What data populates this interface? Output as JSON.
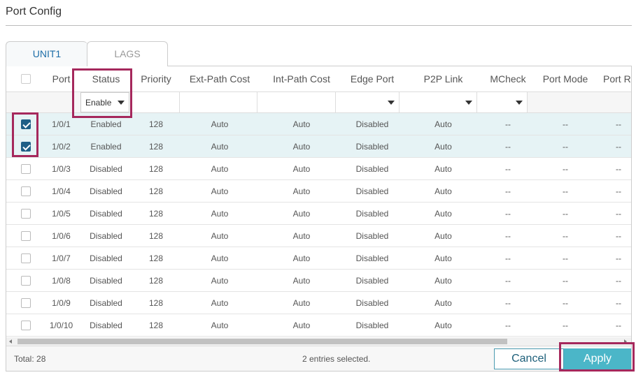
{
  "page_title": "Port Config",
  "tabs": [
    {
      "label": "UNIT1",
      "active": true
    },
    {
      "label": "LAGS",
      "active": false
    }
  ],
  "columns": [
    "Port",
    "Status",
    "Priority",
    "Ext-Path Cost",
    "Int-Path Cost",
    "Edge Port",
    "P2P Link",
    "MCheck",
    "Port Mode",
    "Port R"
  ],
  "filter": {
    "status_value": "Enable"
  },
  "rows": [
    {
      "checked": true,
      "port": "1/0/1",
      "status": "Enabled",
      "priority": "128",
      "ext": "Auto",
      "int": "Auto",
      "edge": "Disabled",
      "p2p": "Auto",
      "mcheck": "--",
      "mode": "--",
      "role": "--"
    },
    {
      "checked": true,
      "port": "1/0/2",
      "status": "Enabled",
      "priority": "128",
      "ext": "Auto",
      "int": "Auto",
      "edge": "Disabled",
      "p2p": "Auto",
      "mcheck": "--",
      "mode": "--",
      "role": "--"
    },
    {
      "checked": false,
      "port": "1/0/3",
      "status": "Disabled",
      "priority": "128",
      "ext": "Auto",
      "int": "Auto",
      "edge": "Disabled",
      "p2p": "Auto",
      "mcheck": "--",
      "mode": "--",
      "role": "--"
    },
    {
      "checked": false,
      "port": "1/0/4",
      "status": "Disabled",
      "priority": "128",
      "ext": "Auto",
      "int": "Auto",
      "edge": "Disabled",
      "p2p": "Auto",
      "mcheck": "--",
      "mode": "--",
      "role": "--"
    },
    {
      "checked": false,
      "port": "1/0/5",
      "status": "Disabled",
      "priority": "128",
      "ext": "Auto",
      "int": "Auto",
      "edge": "Disabled",
      "p2p": "Auto",
      "mcheck": "--",
      "mode": "--",
      "role": "--"
    },
    {
      "checked": false,
      "port": "1/0/6",
      "status": "Disabled",
      "priority": "128",
      "ext": "Auto",
      "int": "Auto",
      "edge": "Disabled",
      "p2p": "Auto",
      "mcheck": "--",
      "mode": "--",
      "role": "--"
    },
    {
      "checked": false,
      "port": "1/0/7",
      "status": "Disabled",
      "priority": "128",
      "ext": "Auto",
      "int": "Auto",
      "edge": "Disabled",
      "p2p": "Auto",
      "mcheck": "--",
      "mode": "--",
      "role": "--"
    },
    {
      "checked": false,
      "port": "1/0/8",
      "status": "Disabled",
      "priority": "128",
      "ext": "Auto",
      "int": "Auto",
      "edge": "Disabled",
      "p2p": "Auto",
      "mcheck": "--",
      "mode": "--",
      "role": "--"
    },
    {
      "checked": false,
      "port": "1/0/9",
      "status": "Disabled",
      "priority": "128",
      "ext": "Auto",
      "int": "Auto",
      "edge": "Disabled",
      "p2p": "Auto",
      "mcheck": "--",
      "mode": "--",
      "role": "--"
    },
    {
      "checked": false,
      "port": "1/0/10",
      "status": "Disabled",
      "priority": "128",
      "ext": "Auto",
      "int": "Auto",
      "edge": "Disabled",
      "p2p": "Auto",
      "mcheck": "--",
      "mode": "--",
      "role": "--"
    }
  ],
  "footer": {
    "total": "Total: 28",
    "selected": "2 entries selected."
  },
  "buttons": {
    "cancel": "Cancel",
    "apply": "Apply"
  },
  "colors": {
    "accent": "#4bb6c8",
    "highlight": "#a5285c",
    "selected_row": "#e6f3f5",
    "checkbox_on": "#1f5f86"
  }
}
